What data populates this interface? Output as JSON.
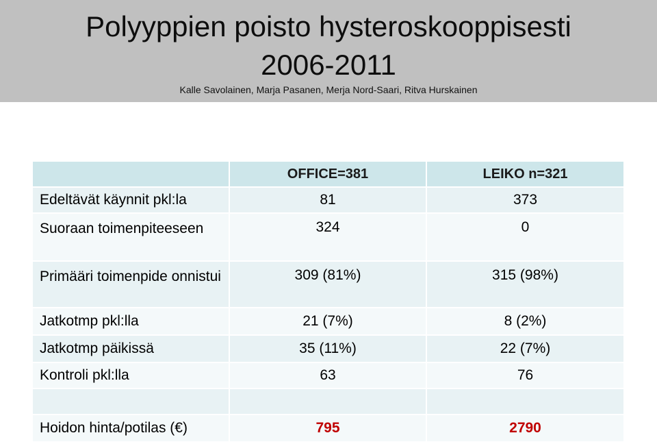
{
  "header": {
    "title_line1": "Polyyppien poisto hysteroskooppisesti",
    "title_line2": "2006-2011",
    "authors": "Kalle Savolainen, Marja Pasanen, Merja Nord-Saari, Ritva Hurskainen"
  },
  "table": {
    "columns": [
      "",
      "OFFICE=381",
      "LEIKO n=321"
    ],
    "rows": [
      {
        "label": "Edeltävät käynnit pkl:la",
        "office": "81",
        "leiko": "373"
      },
      {
        "label": "Suoraan toimenpiteeseen",
        "office": "324",
        "leiko": "0"
      },
      {
        "label": "Primääri toimenpide onnistui",
        "office": "309 (81%)",
        "leiko": "315 (98%)"
      },
      {
        "label": "Jatkotmp pkl:lla",
        "office": "21 (7%)",
        "leiko": "8 (2%)"
      },
      {
        "label": "Jatkotmp päikissä",
        "office": "35 (11%)",
        "leiko": "22 (7%)"
      },
      {
        "label": "Kontroli pkl:lla",
        "office": "63",
        "leiko": "76"
      },
      {
        "label": "",
        "office": "",
        "leiko": ""
      },
      {
        "label": "Hoidon hinta/potilas (€)",
        "office": "795",
        "leiko": "2790"
      }
    ]
  },
  "colors": {
    "header_bg": "#c0c0c0",
    "table_header_bg": "#cde6ea",
    "row_bg_a": "#e8f2f4",
    "row_bg_b": "#f4f9fa",
    "price_color": "#c00000"
  }
}
